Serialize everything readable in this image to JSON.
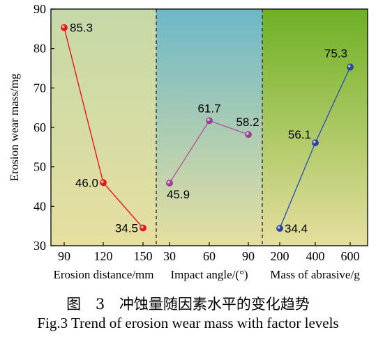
{
  "chart_data": {
    "type": "line",
    "ylabel": "Erosion wear mass/mg",
    "ylim": [
      30,
      90
    ],
    "yticks": [
      30,
      40,
      50,
      60,
      70,
      80,
      90
    ],
    "grid": false,
    "panels": [
      {
        "xlabel": "Erosion distance/mm",
        "categories": [
          "90",
          "120",
          "150"
        ],
        "values": [
          85.3,
          46.0,
          34.5
        ],
        "labels": [
          "85.3",
          "46.0",
          "34.5"
        ],
        "color": "#e8141c",
        "marker_color": "#e8141c",
        "bg_colors": [
          "#c6d9a8",
          "#e6dfa0"
        ]
      },
      {
        "xlabel": "Impact angle/(°)",
        "categories": [
          "30",
          "60",
          "90"
        ],
        "values": [
          45.9,
          61.7,
          58.2
        ],
        "labels": [
          "45.9",
          "61.7",
          "58.2"
        ],
        "color": "#b0589e",
        "marker_color": "#9c3f8e",
        "bg_colors": [
          "#6cb8c8",
          "#e6dfa0"
        ]
      },
      {
        "xlabel": "Mass of abrasive/g",
        "categories": [
          "200",
          "400",
          "600"
        ],
        "values": [
          34.4,
          56.1,
          75.3
        ],
        "labels": [
          "34.4",
          "56.1",
          "75.3"
        ],
        "color": "#2b55b0",
        "marker_color": "#2a3f9e",
        "bg_colors": [
          "#6eb024",
          "#e6dfa0"
        ]
      }
    ]
  },
  "caption": {
    "cn": "图 3 冲蚀量随因素水平的变化趋势",
    "en": "Fig.3 Trend of erosion wear mass with factor levels"
  }
}
